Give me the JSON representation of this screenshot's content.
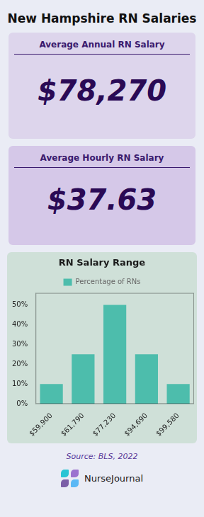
{
  "chart_data": {
    "type": "bar",
    "title": "RN Salary Range",
    "categories": [
      "$59,900",
      "$61,790",
      "$77,230",
      "$94,690",
      "$99,580"
    ],
    "series": [
      {
        "name": "Percentage of RNs",
        "color": "#4dbdac",
        "values": [
          10,
          25,
          50,
          25,
          10
        ]
      }
    ],
    "ylim": [
      0,
      56
    ],
    "yticks": [
      {
        "value": 0,
        "label": "0%"
      },
      {
        "value": 10,
        "label": "10%"
      },
      {
        "value": 20,
        "label": "20%"
      },
      {
        "value": 30,
        "label": "30%"
      },
      {
        "value": 40,
        "label": "40%"
      },
      {
        "value": 50,
        "label": "50%"
      }
    ],
    "grid": false,
    "legend": "top",
    "annotations": [
      "New Hampshire RN Salaries",
      "Average Annual RN Salary",
      "$78,270",
      "Average Hourly RN Salary",
      "$37.63",
      "Source: BLS, 2022",
      "NurseJournal"
    ]
  }
}
